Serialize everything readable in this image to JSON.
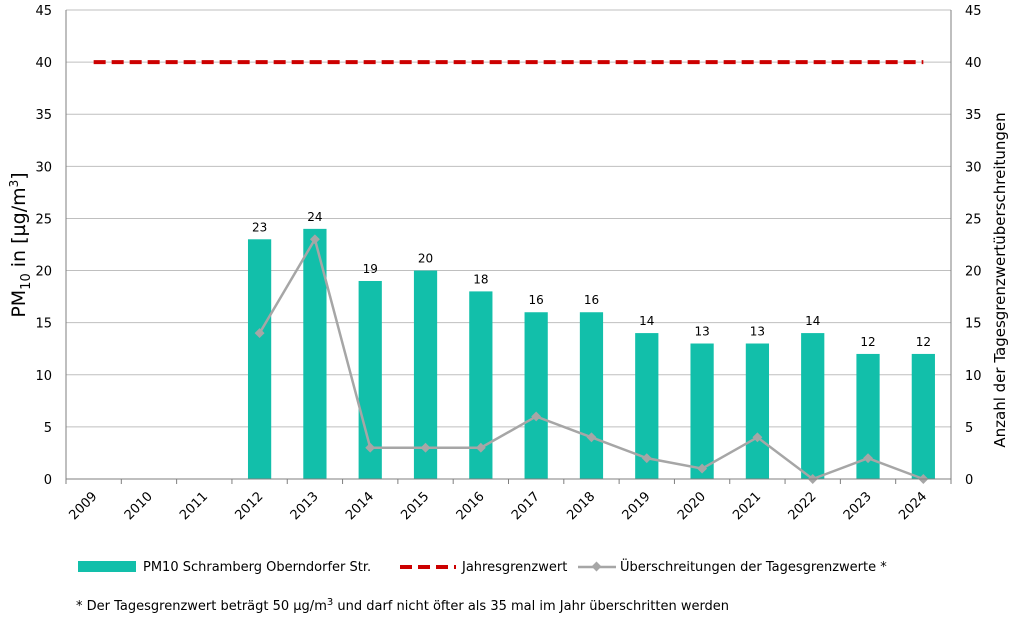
{
  "chart_data": {
    "type": "bar",
    "categories": [
      "2009",
      "2010",
      "2011",
      "2012",
      "2013",
      "2014",
      "2015",
      "2016",
      "2017",
      "2018",
      "2019",
      "2020",
      "2021",
      "2022",
      "2023",
      "2024"
    ],
    "series": [
      {
        "name": "PM10 Schramberg Oberndorfer Str.",
        "kind": "bar",
        "axis": "left",
        "color": "#12BFAA",
        "values": [
          null,
          null,
          null,
          23,
          24,
          19,
          20,
          18,
          16,
          16,
          14,
          13,
          13,
          14,
          12,
          12
        ]
      },
      {
        "name": "Jahresgrenzwert",
        "kind": "dashed-line",
        "axis": "left",
        "color": "#CC0000",
        "values": [
          40,
          40,
          40,
          40,
          40,
          40,
          40,
          40,
          40,
          40,
          40,
          40,
          40,
          40,
          40,
          40
        ]
      },
      {
        "name": "Überschreitungen der Tagesgrenzwerte *",
        "kind": "line-marker",
        "axis": "right",
        "color": "#A6A6A6",
        "values": [
          null,
          null,
          null,
          14,
          23,
          3,
          3,
          3,
          6,
          4,
          2,
          1,
          4,
          0,
          2,
          0
        ]
      }
    ],
    "ylabel": {
      "prefix": "PM",
      "sub": "10",
      "suffix": " in [µg/m",
      "sup": "3",
      "end": "]"
    },
    "y2label": "Anzahl der Tagesgrenzwertüberschreitungen",
    "ylim": [
      0,
      45
    ],
    "y2lim": [
      0,
      45
    ],
    "yticks": [
      0,
      5,
      10,
      15,
      20,
      25,
      30,
      35,
      40,
      45
    ],
    "grid": true,
    "legend_position": "bottom"
  },
  "footnote": {
    "text": "* Der Tagesgrenzwert beträgt 50 µg/m",
    "sup": "3",
    "end": " und darf nicht öfter als 35 mal im Jahr überschritten werden"
  }
}
